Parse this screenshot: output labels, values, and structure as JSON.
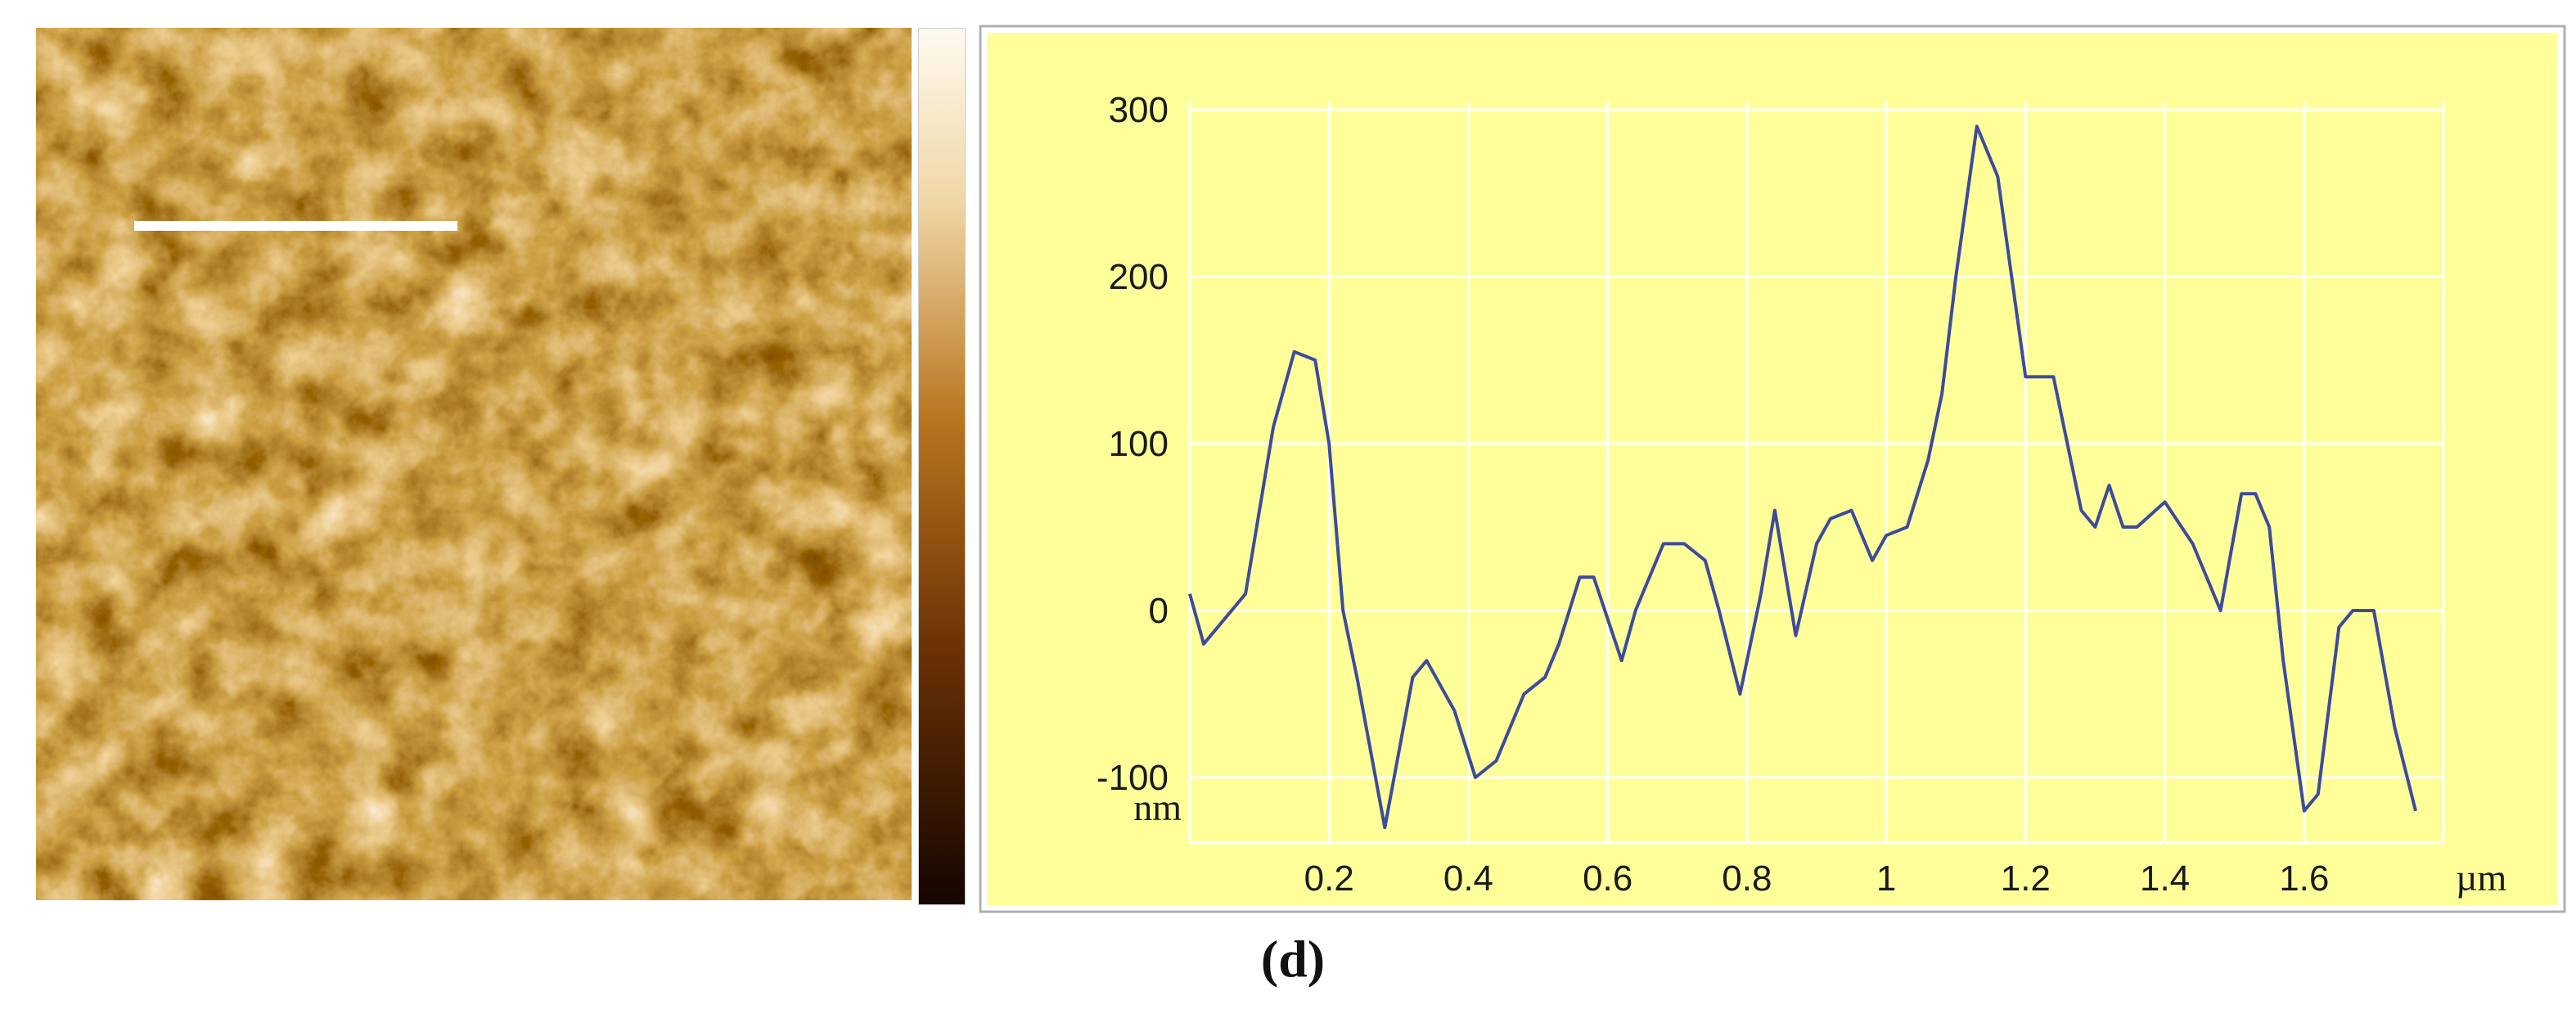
{
  "panel_label": "(d)",
  "colors": {
    "plot_background": "#ffff99",
    "grid": "#ffffff",
    "series_line": "#3d4b9c",
    "scan_line": "#ffffff",
    "afm_dark": "#1f0800",
    "afm_mid": "#a8610f",
    "afm_light": "#fff4dc"
  },
  "chart_data": {
    "type": "line",
    "xlabel": "µm",
    "ylabel": "nm",
    "xlim": [
      0,
      1.8
    ],
    "ylim": [
      -180,
      320
    ],
    "x_ticks": [
      0.2,
      0.4,
      0.6,
      0.8,
      1,
      1.2,
      1.4,
      1.6
    ],
    "x_tick_labels": [
      "0.2",
      "0.4",
      "0.6",
      "0.8",
      "1",
      "1.2",
      "1.4",
      "1.6"
    ],
    "y_ticks": [
      300,
      200,
      100,
      0,
      -100
    ],
    "y_tick_labels": [
      "300",
      "200",
      "100",
      "0",
      "-100"
    ],
    "grid": true,
    "legend": "none",
    "series": [
      {
        "x": [
          0.0,
          0.02,
          0.06,
          0.08,
          0.12,
          0.15,
          0.18,
          0.2,
          0.22,
          0.24,
          0.28,
          0.32,
          0.34,
          0.38,
          0.41,
          0.44,
          0.48,
          0.51,
          0.53,
          0.56,
          0.58,
          0.62,
          0.64,
          0.68,
          0.71,
          0.74,
          0.76,
          0.79,
          0.82,
          0.84,
          0.87,
          0.9,
          0.92,
          0.95,
          0.98,
          1.0,
          1.03,
          1.06,
          1.08,
          1.1,
          1.13,
          1.16,
          1.18,
          1.2,
          1.22,
          1.24,
          1.26,
          1.28,
          1.3,
          1.32,
          1.34,
          1.36,
          1.4,
          1.44,
          1.48,
          1.51,
          1.53,
          1.55,
          1.57,
          1.6,
          1.62,
          1.65,
          1.67,
          1.7,
          1.73,
          1.76
        ],
        "y": [
          10,
          -20,
          0,
          10,
          110,
          155,
          150,
          100,
          0,
          -40,
          -130,
          -40,
          -30,
          -60,
          -100,
          -90,
          -50,
          -40,
          -20,
          20,
          20,
          -30,
          0,
          40,
          40,
          30,
          0,
          -50,
          10,
          60,
          -15,
          40,
          55,
          60,
          30,
          45,
          50,
          90,
          130,
          200,
          290,
          260,
          200,
          140,
          140,
          140,
          100,
          60,
          50,
          75,
          50,
          50,
          65,
          40,
          0,
          70,
          70,
          50,
          -30,
          -120,
          -110,
          -10,
          0,
          0,
          -70,
          -120
        ]
      }
    ]
  }
}
